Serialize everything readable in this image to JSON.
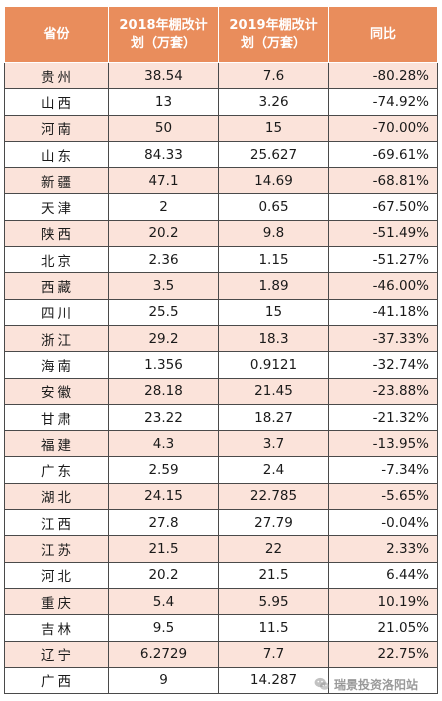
{
  "table": {
    "headers": [
      "省份",
      "2018年棚改计划（万套）",
      "2019年棚改计划（万套）",
      "同比"
    ],
    "rows": [
      [
        "贵州",
        "38.54",
        "7.6",
        "-80.28%"
      ],
      [
        "山西",
        "13",
        "3.26",
        "-74.92%"
      ],
      [
        "河南",
        "50",
        "15",
        "-70.00%"
      ],
      [
        "山东",
        "84.33",
        "25.627",
        "-69.61%"
      ],
      [
        "新疆",
        "47.1",
        "14.69",
        "-68.81%"
      ],
      [
        "天津",
        "2",
        "0.65",
        "-67.50%"
      ],
      [
        "陕西",
        "20.2",
        "9.8",
        "-51.49%"
      ],
      [
        "北京",
        "2.36",
        "1.15",
        "-51.27%"
      ],
      [
        "西藏",
        "3.5",
        "1.89",
        "-46.00%"
      ],
      [
        "四川",
        "25.5",
        "15",
        "-41.18%"
      ],
      [
        "浙江",
        "29.2",
        "18.3",
        "-37.33%"
      ],
      [
        "海南",
        "1.356",
        "0.9121",
        "-32.74%"
      ],
      [
        "安徽",
        "28.18",
        "21.45",
        "-23.88%"
      ],
      [
        "甘肃",
        "23.22",
        "18.27",
        "-21.32%"
      ],
      [
        "福建",
        "4.3",
        "3.7",
        "-13.95%"
      ],
      [
        "广东",
        "2.59",
        "2.4",
        "-7.34%"
      ],
      [
        "湖北",
        "24.15",
        "22.785",
        "-5.65%"
      ],
      [
        "江西",
        "27.8",
        "27.79",
        "-0.04%"
      ],
      [
        "江苏",
        "21.5",
        "22",
        "2.33%"
      ],
      [
        "河北",
        "20.2",
        "21.5",
        "6.44%"
      ],
      [
        "重庆",
        "5.4",
        "5.95",
        "10.19%"
      ],
      [
        "吉林",
        "9.5",
        "11.5",
        "21.05%"
      ],
      [
        "辽宁",
        "6.2729",
        "7.7",
        "22.75%"
      ],
      [
        "广西",
        "9",
        "14.287",
        ""
      ]
    ]
  },
  "watermark": {
    "text": "瑞景投资洛阳站",
    "icon": "wechat-icon"
  },
  "colors": {
    "header_bg": "#e98d5c",
    "alt_row_bg": "#fbe3da"
  }
}
